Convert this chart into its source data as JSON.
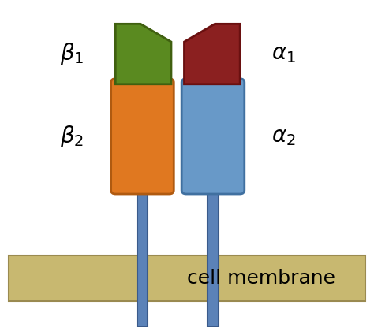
{
  "bg_color": "#ffffff",
  "membrane_color": "#c8b870",
  "membrane_edge_color": "#9a8a50",
  "stem_color": "#5b82b8",
  "stem_edge_color": "#3a5a8a",
  "orange_color": "#e07820",
  "orange_edge_color": "#b05a10",
  "blue_color": "#6899c8",
  "blue_edge_color": "#4070a0",
  "green_color": "#5a8a20",
  "green_edge_color": "#406010",
  "dark_red_color": "#8b2020",
  "dark_red_edge_color": "#6a1010",
  "text_color": "#000000",
  "label_fontsize": 20,
  "membrane_label": "cell membrane",
  "membrane_label_fontsize": 18,
  "figwidth": 4.74,
  "figheight": 4.16,
  "dpi": 100
}
